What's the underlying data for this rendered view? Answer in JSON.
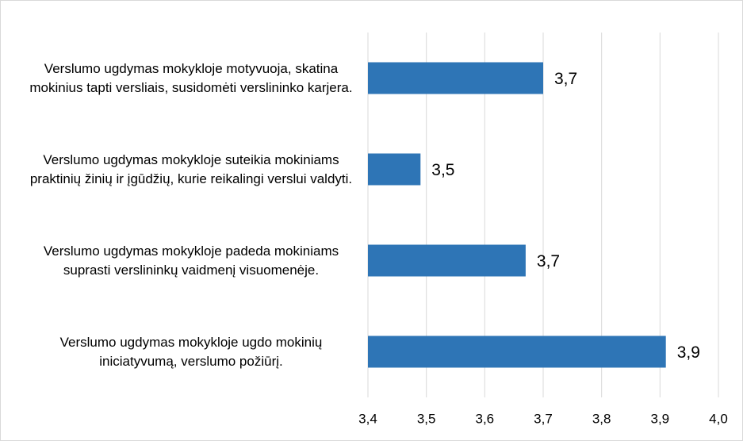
{
  "chart_data": {
    "type": "barh",
    "categories": [
      "Verslumo ugdymas mokykloje motyvuoja, skatina mokinius tapti versliais, susidomėti verslininko karjera.",
      "Verslumo ugdymas mokykloje suteikia mokiniams praktinių žinių ir įgūdžių, kurie reikalingi verslui valdyti.",
      "Verslumo ugdymas mokykloje padeda mokiniams suprasti verslininkų vaidmenį visuomenėje.",
      "Verslumo ugdymas mokykloje ugdo mokinių iniciatyvumą, verslumo požiūrį."
    ],
    "values": [
      3.7,
      3.49,
      3.67,
      3.91
    ],
    "value_labels": [
      "3,7",
      "3,5",
      "3,7",
      "3,9"
    ],
    "color": "#2e75b6",
    "xlim": [
      3.4,
      4.0
    ],
    "xticks": [
      {
        "value": 3.4,
        "label": "3,4"
      },
      {
        "value": 3.5,
        "label": "3,5"
      },
      {
        "value": 3.6,
        "label": "3,6"
      },
      {
        "value": 3.7,
        "label": "3,7"
      },
      {
        "value": 3.8,
        "label": "3,8"
      },
      {
        "value": 3.9,
        "label": "3,9"
      },
      {
        "value": 4.0,
        "label": "4,0"
      }
    ],
    "grid": true
  }
}
